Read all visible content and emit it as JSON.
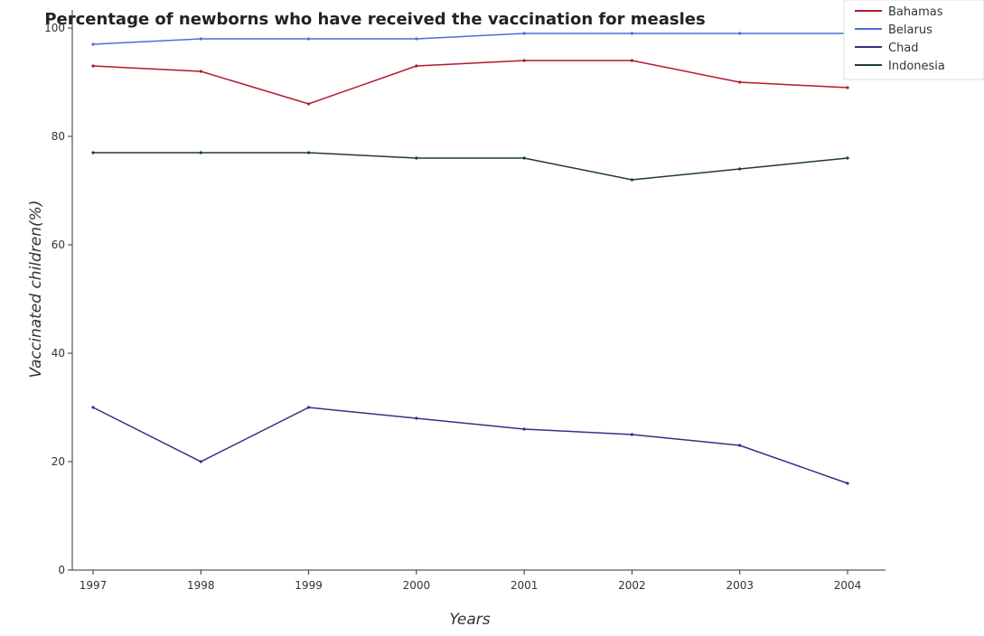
{
  "chart_data": {
    "type": "line",
    "title": "Percentage of newborns who have received the vaccination for measles",
    "xlabel": "Years",
    "ylabel": "Vaccinated children(%)",
    "x": [
      "1997",
      "1998",
      "1999",
      "2000",
      "2001",
      "2002",
      "2003",
      "2004"
    ],
    "ylim": [
      0,
      100
    ],
    "yticks": [
      0,
      20,
      40,
      60,
      80,
      100
    ],
    "grid": false,
    "legend_position": "top-right",
    "series": [
      {
        "name": "Bahamas",
        "color": "#b2182b",
        "values": [
          93,
          92,
          86,
          93,
          94,
          94,
          90,
          89
        ]
      },
      {
        "name": "Belarus",
        "color": "#4a6fd4",
        "values": [
          97,
          98,
          98,
          98,
          99,
          99,
          99,
          99
        ]
      },
      {
        "name": "Chad",
        "color": "#3f2a86",
        "values": [
          30,
          20,
          30,
          28,
          26,
          25,
          23,
          16
        ]
      },
      {
        "name": "Indonesia",
        "color": "#1f3b30",
        "values": [
          77,
          77,
          77,
          76,
          76,
          72,
          74,
          76
        ]
      }
    ]
  }
}
